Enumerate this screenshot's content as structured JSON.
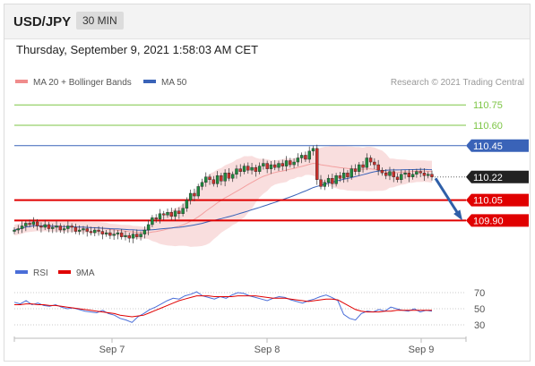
{
  "header": {
    "symbol": "USD/JPY",
    "timeframe": "30 MIN"
  },
  "datetime": "Thursday, September 9, 2021 1:58:03 AM CET",
  "legend": {
    "ma20": "MA 20 + Bollinger Bands",
    "ma50": "MA 50",
    "credit": "Research © 2021 Trading Central",
    "rsi": "RSI",
    "ma9": "9MA"
  },
  "colors": {
    "resistance_green": "#7dc545",
    "ma50_blue": "#3a63b8",
    "support_red": "#e00000",
    "current_dark": "#222222",
    "candle_green": "#1e8a3e",
    "candle_red": "#c9302c",
    "bollinger": "#f6cccc",
    "arrow": "#2f5fa8",
    "rsi_line": "#4a6ed8",
    "ma9_line": "#e00000"
  },
  "chart_data": [
    {
      "type": "candlestick",
      "title": "USD/JPY 30 MIN",
      "x_tick_labels": [
        "Sep 7",
        "Sep 8",
        "Sep 9"
      ],
      "ylim": [
        109.6,
        110.85
      ],
      "levels": [
        {
          "value": 110.75,
          "label": "110.75",
          "kind": "resistance"
        },
        {
          "value": 110.6,
          "label": "110.60",
          "kind": "resistance"
        },
        {
          "value": 110.45,
          "label": "110.45",
          "kind": "pivot"
        },
        {
          "value": 110.22,
          "label": "110.22",
          "kind": "current"
        },
        {
          "value": 110.05,
          "label": "110.05",
          "kind": "support"
        },
        {
          "value": 109.9,
          "label": "109.90",
          "kind": "support"
        }
      ],
      "forecast_arrow": {
        "from": 110.21,
        "to": 109.92,
        "direction": "down"
      },
      "closes": [
        109.83,
        109.84,
        109.86,
        109.88,
        109.87,
        109.89,
        109.86,
        109.85,
        109.87,
        109.84,
        109.85,
        109.86,
        109.83,
        109.84,
        109.86,
        109.85,
        109.82,
        109.83,
        109.84,
        109.82,
        109.81,
        109.83,
        109.82,
        109.8,
        109.81,
        109.79,
        109.8,
        109.81,
        109.78,
        109.79,
        109.77,
        109.8,
        109.78,
        109.8,
        109.83,
        109.87,
        109.92,
        109.91,
        109.95,
        109.94,
        109.96,
        109.93,
        109.97,
        109.95,
        109.99,
        110.05,
        110.1,
        110.08,
        110.15,
        110.18,
        110.22,
        110.2,
        110.17,
        110.23,
        110.19,
        110.25,
        110.21,
        110.24,
        110.28,
        110.26,
        110.3,
        110.27,
        110.29,
        110.26,
        110.3,
        110.32,
        110.28,
        110.31,
        110.29,
        110.32,
        110.3,
        110.34,
        110.31,
        110.33,
        110.36,
        110.38,
        110.35,
        110.41,
        110.43,
        110.2,
        110.15,
        110.18,
        110.21,
        110.17,
        110.23,
        110.21,
        110.25,
        110.22,
        110.28,
        110.26,
        110.31,
        110.29,
        110.36,
        110.33,
        110.31,
        110.27,
        110.25,
        110.23,
        110.26,
        110.22,
        110.2,
        110.24,
        110.25,
        110.22,
        110.24,
        110.26,
        110.25,
        110.23,
        110.24,
        110.22
      ]
    },
    {
      "type": "line",
      "title": "RSI",
      "ylim": [
        20,
        80
      ],
      "y_tick_labels": [
        "70",
        "50",
        "30"
      ],
      "series": [
        {
          "name": "RSI",
          "values": [
            58,
            56,
            60,
            55,
            57,
            54,
            53,
            55,
            52,
            50,
            51,
            49,
            47,
            46,
            45,
            48,
            44,
            42,
            38,
            36,
            33,
            40,
            44,
            49,
            52,
            56,
            60,
            63,
            62,
            66,
            68,
            71,
            66,
            64,
            62,
            65,
            63,
            67,
            70,
            69,
            66,
            64,
            62,
            60,
            63,
            65,
            64,
            61,
            59,
            57,
            60,
            62,
            65,
            67,
            64,
            60,
            43,
            38,
            36,
            44,
            47,
            46,
            49,
            47,
            52,
            50,
            48,
            47,
            50,
            46,
            48,
            47
          ]
        },
        {
          "name": "9MA",
          "values": [
            55,
            55,
            56,
            56,
            55,
            55,
            54,
            54,
            53,
            52,
            51,
            50,
            49,
            48,
            47,
            46,
            45,
            44,
            42,
            41,
            40,
            41,
            42,
            45,
            48,
            51,
            54,
            57,
            60,
            62,
            64,
            66,
            66,
            66,
            65,
            65,
            65,
            65,
            66,
            66,
            66,
            66,
            65,
            64,
            63,
            63,
            63,
            62,
            61,
            60,
            59,
            60,
            61,
            62,
            62,
            61,
            57,
            53,
            49,
            47,
            46,
            46,
            46,
            47,
            47,
            48,
            48,
            48,
            48,
            48,
            48,
            48
          ]
        }
      ]
    }
  ]
}
